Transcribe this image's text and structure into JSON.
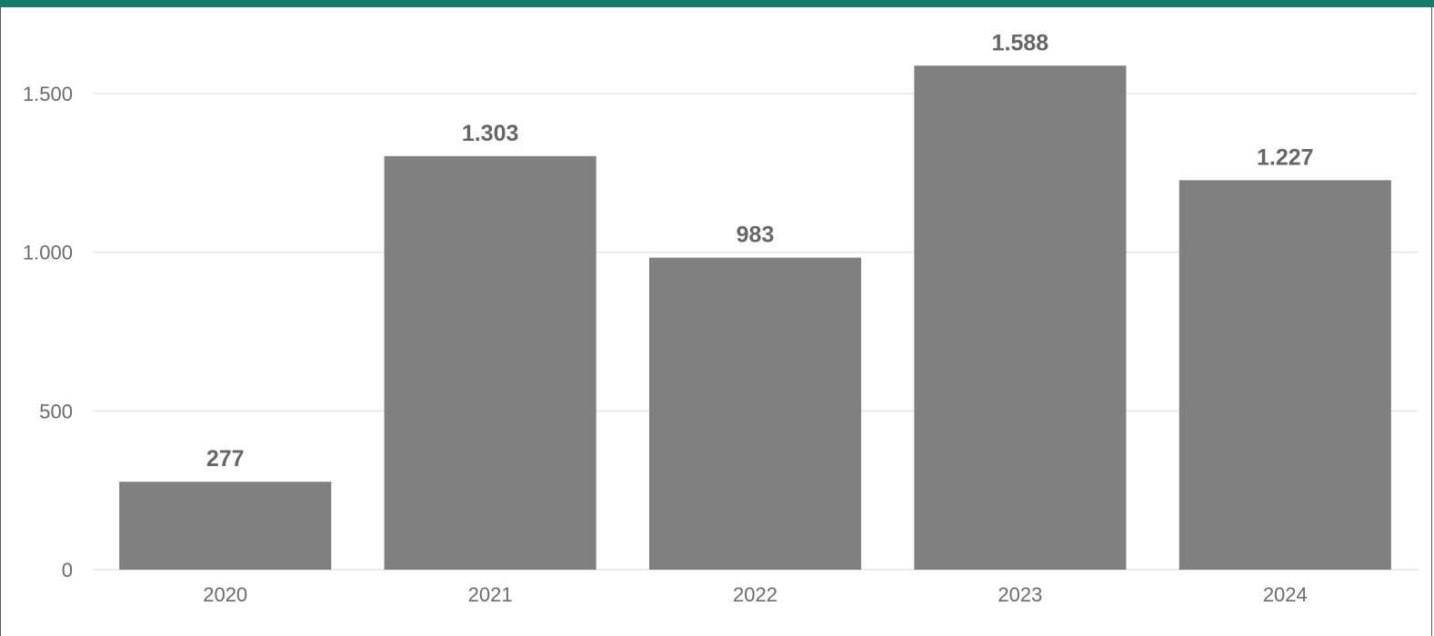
{
  "theme": {
    "accent": "#147a6a",
    "bar": "#808080",
    "grid": "#e6e6e6"
  },
  "chart_data": {
    "type": "bar",
    "categories": [
      "2020",
      "2021",
      "2022",
      "2023",
      "2024"
    ],
    "values": [
      277,
      1303,
      983,
      1588,
      1227
    ],
    "data_labels": [
      "277",
      "1.303",
      "983",
      "1.588",
      "1.227"
    ],
    "title": "",
    "xlabel": "",
    "ylabel": "",
    "ylim": [
      0,
      1700
    ],
    "y_ticks": [
      0,
      500,
      1000,
      1500
    ],
    "y_tick_labels": [
      "0",
      "500",
      "1.000",
      "1.500"
    ],
    "grid": true,
    "legend": "none"
  }
}
